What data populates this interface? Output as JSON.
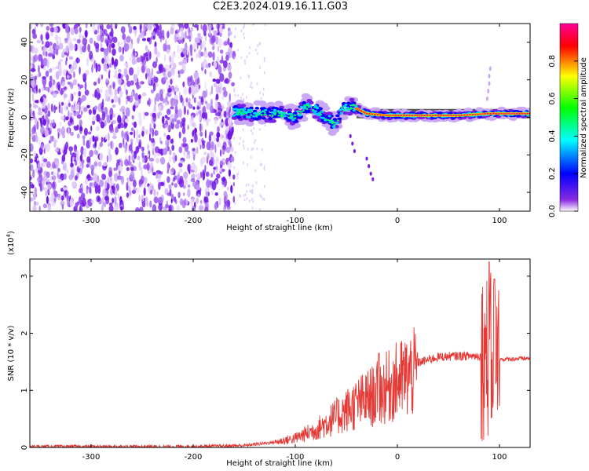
{
  "title": "C2E3.2024.019.16.11.G03",
  "chart_data": [
    {
      "type": "heatmap",
      "xlabel": "Height of straight line (km)",
      "ylabel": "Frequency (Hz)",
      "xlim": [
        -360,
        130
      ],
      "ylim": [
        -50,
        50
      ],
      "x_ticks": [
        -300,
        -200,
        -100,
        0,
        100
      ],
      "y_ticks": [
        -40,
        -20,
        0,
        20,
        40
      ],
      "colorbar": {
        "label": "Normalized spectral amplitude",
        "range": [
          0,
          1
        ],
        "ticks": [
          0.0,
          0.2,
          0.4,
          0.6,
          0.8
        ],
        "colormap": [
          "#ffffff",
          "#8a2be2",
          "#0000ff",
          "#00ffff",
          "#00ff00",
          "#ffff00",
          "#ff0000",
          "#ff0099"
        ]
      },
      "features": {
        "noise_region_x": [
          -360,
          -160
        ],
        "noise_color": "#7a1fe6",
        "signal_track": [
          {
            "x": -160,
            "f": 3
          },
          {
            "x": -140,
            "f": 2
          },
          {
            "x": -120,
            "f": 2
          },
          {
            "x": -100,
            "f": 0
          },
          {
            "x": -90,
            "f": 6
          },
          {
            "x": -80,
            "f": 4
          },
          {
            "x": -70,
            "f": 0
          },
          {
            "x": -60,
            "f": -4
          },
          {
            "x": -55,
            "f": 4
          },
          {
            "x": -45,
            "f": 6
          },
          {
            "x": -30,
            "f": 2
          },
          {
            "x": -10,
            "f": 1
          },
          {
            "x": 20,
            "f": 1
          },
          {
            "x": 60,
            "f": 1
          },
          {
            "x": 90,
            "f": 2
          },
          {
            "x": 130,
            "f": 2
          }
        ],
        "strong_band_x": [
          -40,
          130
        ],
        "grey_band_f": [
          1,
          3
        ]
      }
    },
    {
      "type": "line",
      "xlabel": "Height of straight line (km)",
      "ylabel": "SNR (10 * v/v)",
      "y_multiplier": "(x10",
      "y_multiplier_exp": "4",
      "xlim": [
        -360,
        130
      ],
      "ylim": [
        0,
        3.3
      ],
      "x_ticks": [
        -300,
        -200,
        -100,
        0,
        100
      ],
      "y_ticks": [
        0,
        1,
        2,
        3
      ],
      "color": "#e53935",
      "envelope": [
        {
          "x": -360,
          "y": 0.02
        },
        {
          "x": -200,
          "y": 0.02
        },
        {
          "x": -150,
          "y": 0.04
        },
        {
          "x": -120,
          "y": 0.1
        },
        {
          "x": -100,
          "y": 0.18
        },
        {
          "x": -80,
          "y": 0.35
        },
        {
          "x": -60,
          "y": 0.6
        },
        {
          "x": -40,
          "y": 0.85
        },
        {
          "x": -20,
          "y": 1.05
        },
        {
          "x": 0,
          "y": 1.3
        },
        {
          "x": 20,
          "y": 1.5
        },
        {
          "x": 40,
          "y": 1.6
        },
        {
          "x": 60,
          "y": 1.62
        },
        {
          "x": 80,
          "y": 1.62
        },
        {
          "x": 85,
          "y": 1.6
        },
        {
          "x": 100,
          "y": 1.55
        },
        {
          "x": 130,
          "y": 1.57
        }
      ],
      "spikes": [
        {
          "x": -18,
          "y": 1.65
        },
        {
          "x": 90,
          "y": 3.25
        },
        {
          "x": 95,
          "y": 2.95
        }
      ]
    }
  ]
}
